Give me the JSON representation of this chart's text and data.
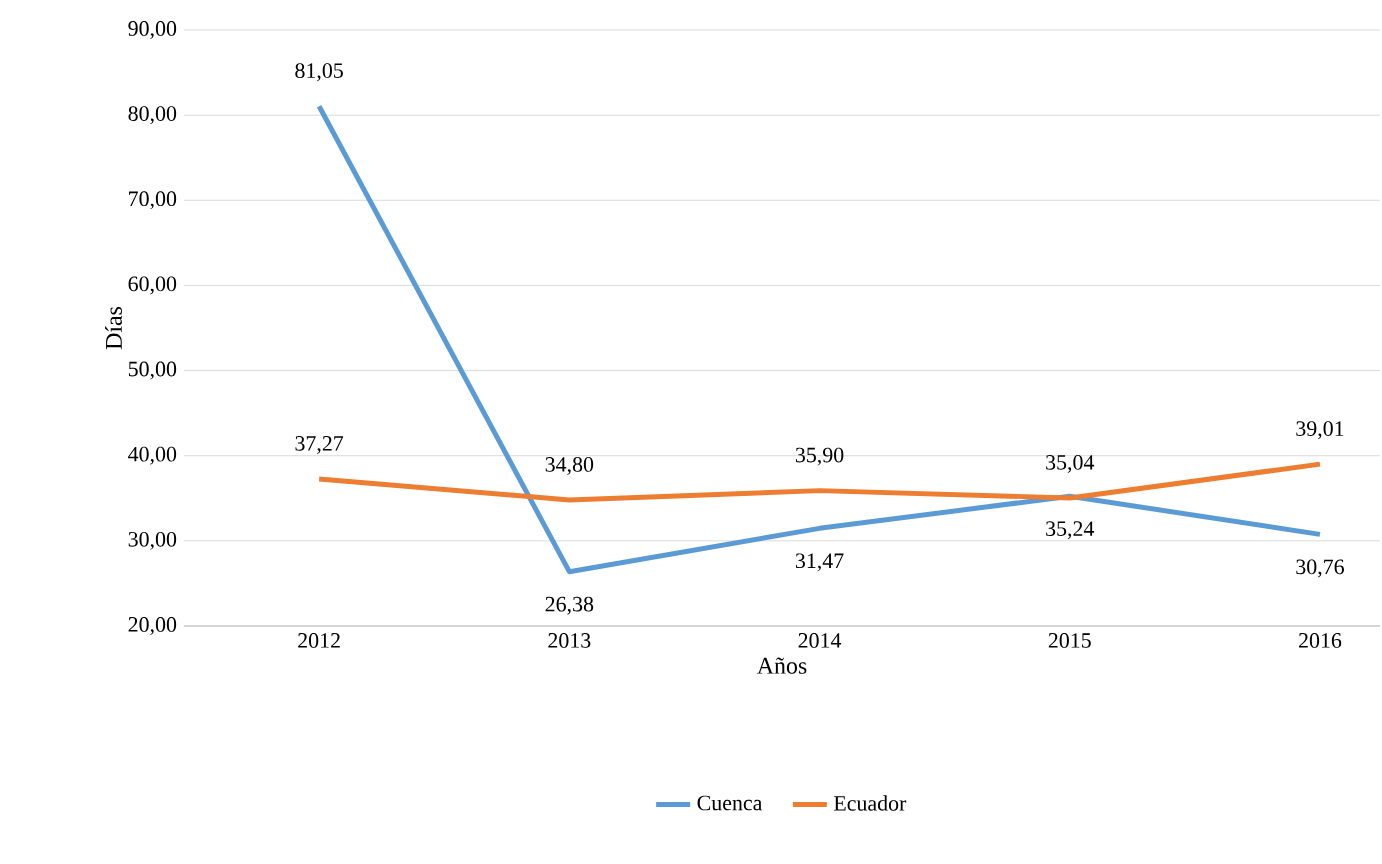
{
  "chart_data": {
    "type": "line",
    "xlabel": "Años",
    "ylabel": "Días",
    "categories": [
      "2012",
      "2013",
      "2014",
      "2015",
      "2016"
    ],
    "series": [
      {
        "name": "Cuenca",
        "color": "#5b9bd5",
        "values": [
          81.05,
          26.38,
          31.47,
          35.24,
          30.76
        ],
        "value_labels": [
          "81,05",
          "26,38",
          "31,47",
          "35,24",
          "30,76"
        ]
      },
      {
        "name": "Ecuador",
        "color": "#ed7d31",
        "values": [
          37.27,
          34.8,
          35.9,
          35.04,
          39.01
        ],
        "value_labels": [
          "37,27",
          "34,80",
          "35,90",
          "35,04",
          "39,01"
        ]
      }
    ],
    "ylim": [
      20,
      90
    ],
    "yticks": [
      {
        "value": 20,
        "label": "20,00"
      },
      {
        "value": 30,
        "label": "30,00"
      },
      {
        "value": 40,
        "label": "40,00"
      },
      {
        "value": 50,
        "label": "50,00"
      },
      {
        "value": 60,
        "label": "60,00"
      },
      {
        "value": 70,
        "label": "70,00"
      },
      {
        "value": 80,
        "label": "80,00"
      },
      {
        "value": 90,
        "label": "90,00"
      }
    ],
    "grid": "y",
    "legend": "bottom",
    "marker": "none",
    "line_style": "solid"
  }
}
